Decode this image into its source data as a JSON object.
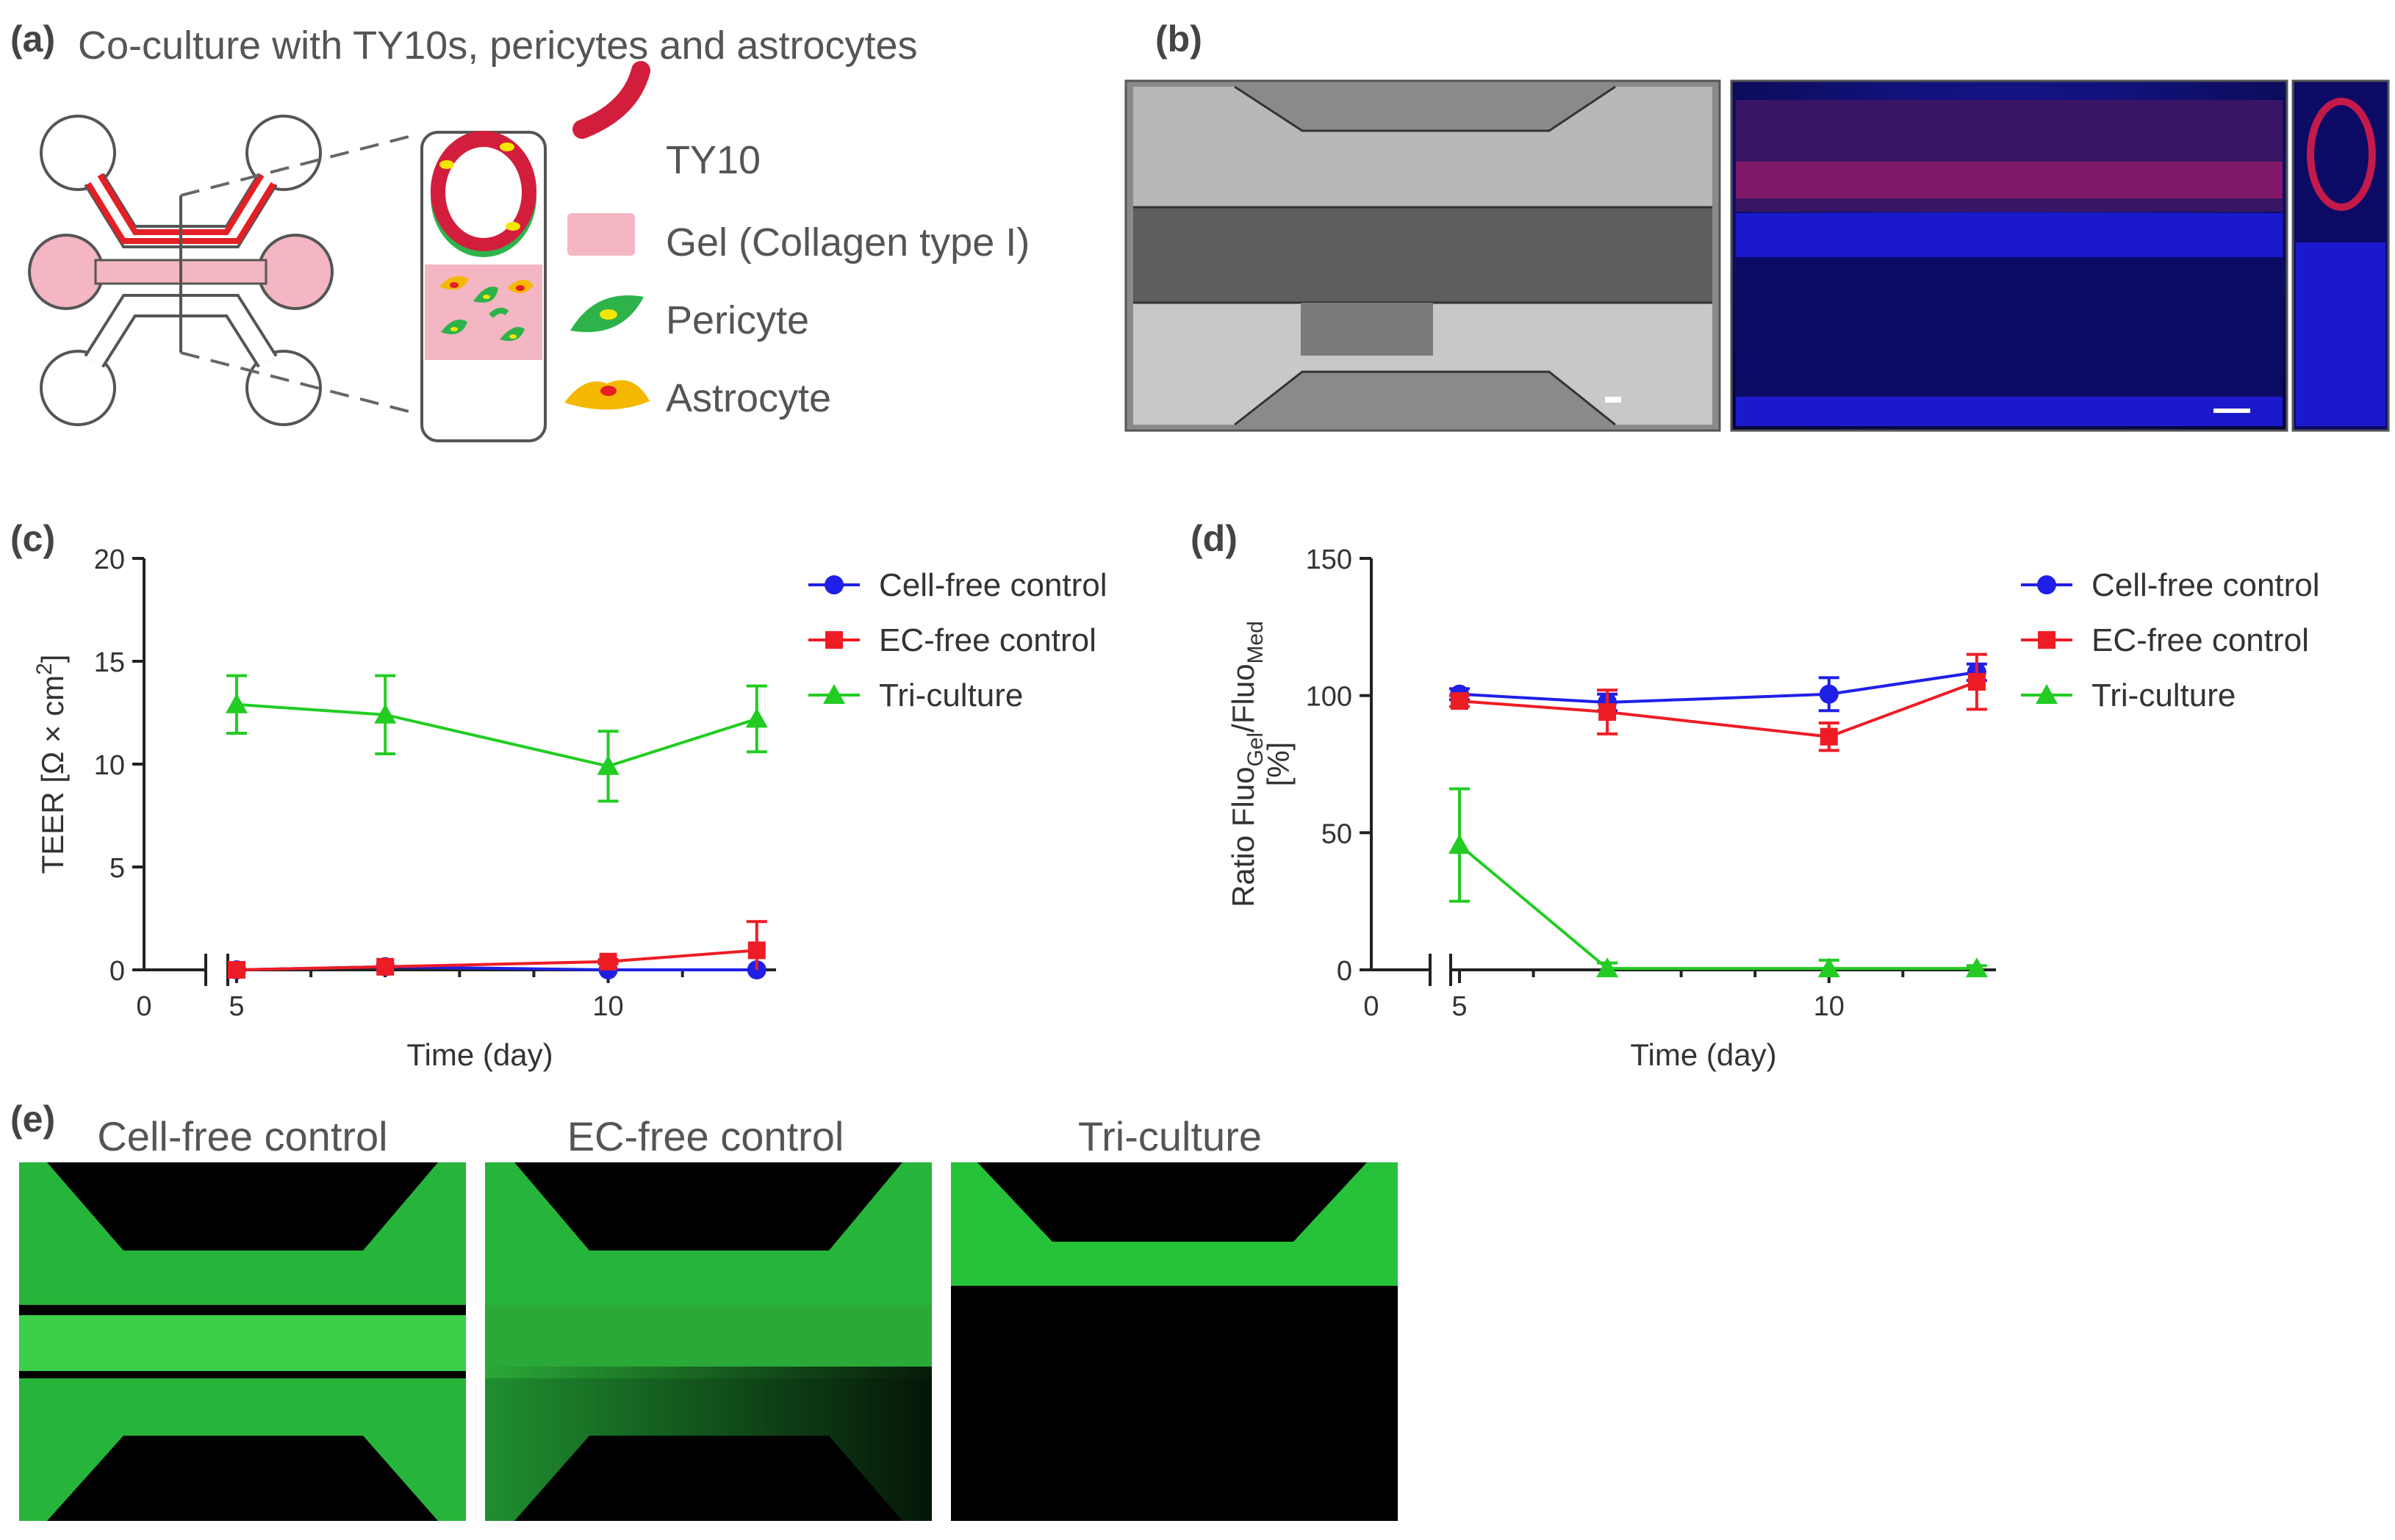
{
  "panels": {
    "a": {
      "label": "(a)",
      "title": "Co-culture with TY10s, pericytes and astrocytes",
      "legend": [
        {
          "icon": "ty10-tube-icon",
          "label": "TY10"
        },
        {
          "icon": "gel-swatch-icon",
          "label": "Gel (Collagen type I)"
        },
        {
          "icon": "pericyte-cell-icon",
          "label": "Pericyte"
        },
        {
          "icon": "astrocyte-cell-icon",
          "label": "Astrocyte"
        }
      ]
    },
    "b": {
      "label": "(b)"
    },
    "c": {
      "label": "(c)"
    },
    "d": {
      "label": "(d)"
    },
    "e": {
      "label": "(e)",
      "images": [
        {
          "title": "Cell-free control"
        },
        {
          "title": "EC-free control"
        },
        {
          "title": "Tri-culture"
        }
      ]
    }
  },
  "colors": {
    "blue": "#1f1fe8",
    "red": "#ee1c25",
    "green": "#22cc22",
    "fluo_green": "#27c03a",
    "tube_red": "#d21e3c",
    "gel_pink": "#f4b6c2",
    "pericyte": "#2db34a",
    "astrocyte": "#f5b800"
  },
  "chart_data": [
    {
      "type": "line",
      "panel": "c",
      "xlabel": "Time (day)",
      "ylabel": "TEER [Ω × cm²]",
      "ylabel_main": "TEER [Ω × cm",
      "ylabel_sup": "2",
      "ylabel_end": "]",
      "x_ticks": [
        "0",
        "5",
        "10"
      ],
      "y_ticks": [
        "0",
        "5",
        "10",
        "15",
        "20"
      ],
      "xlim": [
        5,
        12.2
      ],
      "ylim": [
        0,
        20
      ],
      "axis_break": true,
      "legend_position": "top-right",
      "series": [
        {
          "name": "Cell-free control",
          "marker": "circle",
          "color": "#1f1fe8",
          "x": [
            5,
            7,
            10,
            12
          ],
          "y": [
            0,
            0.15,
            0,
            0
          ],
          "err": [
            0,
            0,
            0,
            0
          ]
        },
        {
          "name": "EC-free control",
          "marker": "square",
          "color": "#ee1c25",
          "x": [
            5,
            7,
            10,
            12
          ],
          "y": [
            0,
            0.15,
            0.4,
            0.95
          ],
          "err": [
            0,
            0,
            0.1,
            1.4
          ]
        },
        {
          "name": "Tri-culture",
          "marker": "triangle",
          "color": "#22cc22",
          "x": [
            5,
            7,
            10,
            12
          ],
          "y": [
            12.9,
            12.4,
            9.9,
            12.2
          ],
          "err": [
            1.4,
            1.9,
            1.7,
            1.6
          ]
        }
      ]
    },
    {
      "type": "line",
      "panel": "d",
      "xlabel": "Time (day)",
      "ylabel_line1_main": "Ratio Fluo",
      "ylabel_line1_sub1": "Gel",
      "ylabel_line1_mid": "/Fluo",
      "ylabel_line1_sub2": "Med",
      "ylabel_line2": "[%]",
      "x_ticks": [
        "0",
        "5",
        "10"
      ],
      "y_ticks": [
        "0",
        "50",
        "100",
        "150"
      ],
      "xlim": [
        5,
        12.2
      ],
      "ylim": [
        0,
        150
      ],
      "axis_break": true,
      "legend_position": "top-right",
      "series": [
        {
          "name": "Cell-free control",
          "marker": "circle",
          "color": "#1f1fe8",
          "x": [
            5,
            7,
            10,
            12
          ],
          "y": [
            100.5,
            97.5,
            100.5,
            108.5
          ],
          "err": [
            2,
            3,
            6,
            3
          ]
        },
        {
          "name": "EC-free control",
          "marker": "square",
          "color": "#ee1c25",
          "x": [
            5,
            7,
            10,
            12
          ],
          "y": [
            98,
            94,
            85,
            105
          ],
          "err": [
            2,
            8,
            5,
            10
          ]
        },
        {
          "name": "Tri-culture",
          "marker": "triangle",
          "color": "#22cc22",
          "x": [
            5,
            7,
            10,
            12
          ],
          "y": [
            45.5,
            0.5,
            0.5,
            0.5
          ],
          "err": [
            20.5,
            2,
            3,
            1
          ]
        }
      ]
    }
  ]
}
